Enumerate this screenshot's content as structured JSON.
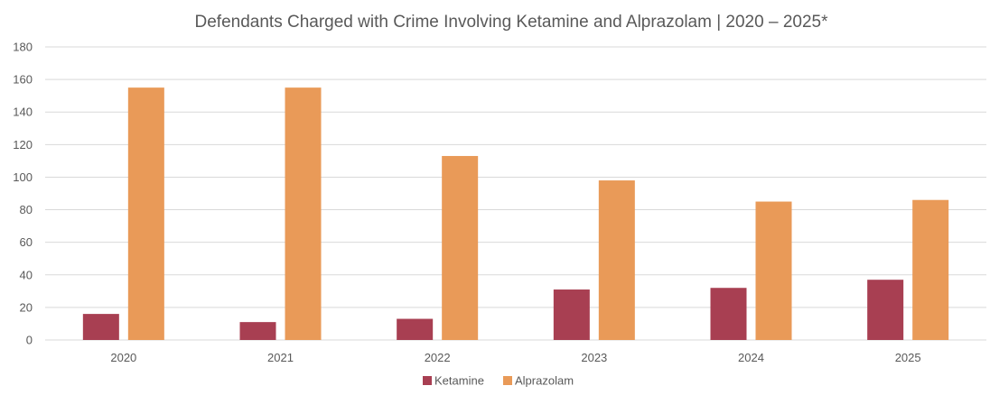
{
  "chart_data": {
    "type": "bar",
    "title": "Defendants Charged with Crime Involving Ketamine and Alprazolam | 2020 – 2025*",
    "xlabel": "",
    "ylabel": "",
    "categories": [
      "2020",
      "2021",
      "2022",
      "2023",
      "2024",
      "2025"
    ],
    "series": [
      {
        "name": "Ketamine",
        "color": "#a83f52",
        "values": [
          16,
          11,
          13,
          31,
          32,
          37
        ]
      },
      {
        "name": "Alprazolam",
        "color": "#e99a58",
        "values": [
          155,
          155,
          113,
          98,
          85,
          86
        ]
      }
    ],
    "ylim": [
      0,
      180
    ],
    "yticks": [
      0,
      20,
      40,
      60,
      80,
      100,
      120,
      140,
      160,
      180
    ],
    "grid": true,
    "legend": "bottom-center"
  }
}
